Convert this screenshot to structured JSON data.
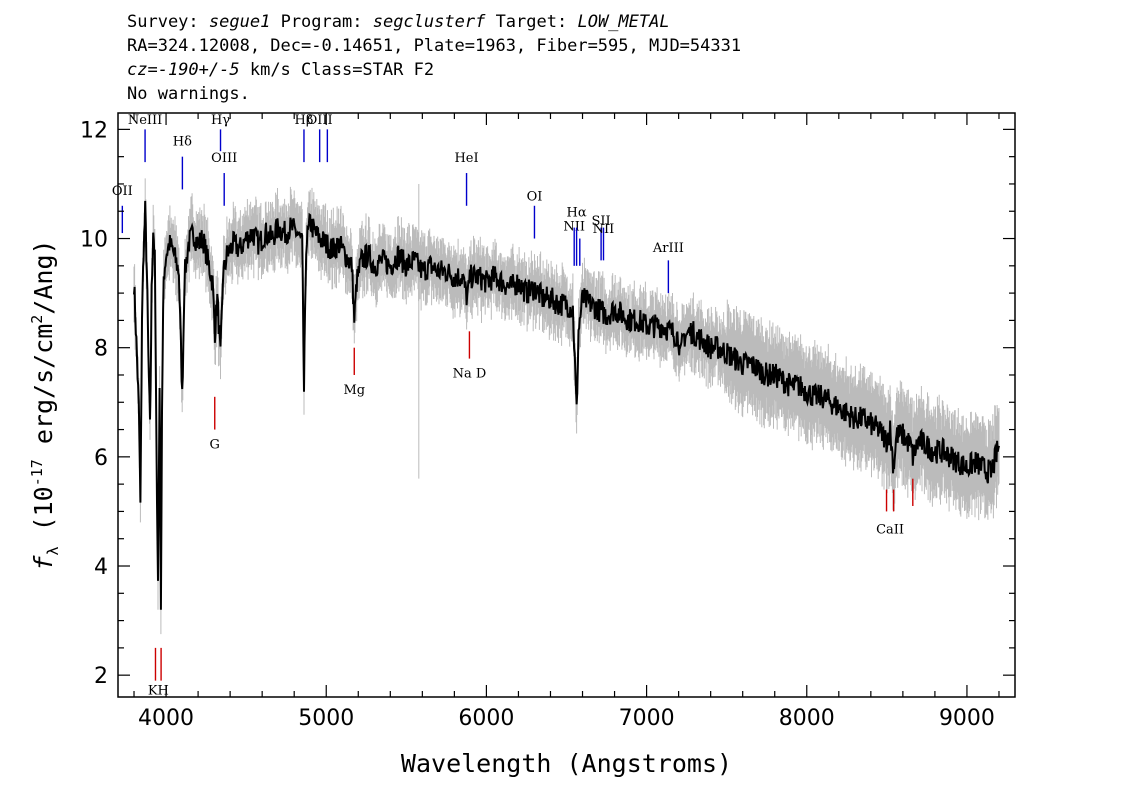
{
  "header": {
    "survey_label": "Survey:",
    "survey": "segue1",
    "program_label": "Program:",
    "program": "segclusterf",
    "target_label": "Target:",
    "target": "LOW_METAL",
    "line2": "RA=324.12008, Dec=-0.14651, Plate=1963, Fiber=595, MJD=54331",
    "cz_label": "cz=",
    "cz": "-190+/-5",
    "cz_rest": " km/s Class=STAR F2",
    "warnings": "No warnings."
  },
  "colors": {
    "spectrum": "#000000",
    "error_band": "#bbbbbb",
    "emission_line": "#0000cc",
    "absorption_line": "#cc0000"
  },
  "chart_data": {
    "type": "line",
    "xlabel": "Wavelength (Angstroms)",
    "ylabel_prefix": "f",
    "ylabel_sub": "λ",
    "ylabel_main": " (10",
    "ylabel_exp": "-17",
    "ylabel_rest": " erg/s/cm",
    "ylabel_exp2": "2",
    "ylabel_end": "/Ang)",
    "xlim": [
      3700,
      9300
    ],
    "ylim": [
      1.6,
      12.3
    ],
    "xticks": [
      4000,
      5000,
      6000,
      7000,
      8000,
      9000
    ],
    "yticks": [
      2,
      4,
      6,
      8,
      10,
      12
    ],
    "x_minor_step": 200,
    "y_minor_step": 0.5,
    "grid": false,
    "series": [
      {
        "points": [
          [
            3800,
            9.2
          ],
          [
            3815,
            8.1
          ],
          [
            3830,
            6.9
          ],
          [
            3840,
            5.1
          ],
          [
            3850,
            8.6
          ],
          [
            3860,
            9.8
          ],
          [
            3870,
            10.5
          ],
          [
            3880,
            9.4
          ],
          [
            3890,
            7.8
          ],
          [
            3900,
            6.5
          ],
          [
            3910,
            9.0
          ],
          [
            3920,
            10.2
          ],
          [
            3930,
            9.6
          ],
          [
            3940,
            6.2
          ],
          [
            3950,
            3.7
          ],
          [
            3960,
            7.4
          ],
          [
            3968,
            3.4
          ],
          [
            3975,
            6.9
          ],
          [
            3985,
            9.3
          ],
          [
            4000,
            9.7
          ],
          [
            4020,
            9.9
          ],
          [
            4040,
            9.8
          ],
          [
            4060,
            9.6
          ],
          [
            4080,
            9.4
          ],
          [
            4101,
            7.1
          ],
          [
            4115,
            9.3
          ],
          [
            4140,
            9.9
          ],
          [
            4170,
            10.1
          ],
          [
            4200,
            9.9
          ],
          [
            4230,
            10.0
          ],
          [
            4260,
            9.6
          ],
          [
            4290,
            9.2
          ],
          [
            4305,
            8.3
          ],
          [
            4320,
            8.9
          ],
          [
            4340,
            7.8
          ],
          [
            4355,
            9.3
          ],
          [
            4380,
            9.7
          ],
          [
            4420,
            9.9
          ],
          [
            4460,
            9.8
          ],
          [
            4500,
            10.0
          ],
          [
            4540,
            10.1
          ],
          [
            4580,
            9.9
          ],
          [
            4620,
            10.1
          ],
          [
            4660,
            10.0
          ],
          [
            4700,
            10.2
          ],
          [
            4740,
            10.1
          ],
          [
            4780,
            10.2
          ],
          [
            4820,
            10.1
          ],
          [
            4850,
            9.9
          ],
          [
            4861,
            7.2
          ],
          [
            4875,
            9.9
          ],
          [
            4900,
            10.3
          ],
          [
            4930,
            10.1
          ],
          [
            4960,
            10.0
          ],
          [
            5000,
            9.9
          ],
          [
            5040,
            9.8
          ],
          [
            5080,
            9.9
          ],
          [
            5120,
            9.7
          ],
          [
            5160,
            9.5
          ],
          [
            5175,
            8.5
          ],
          [
            5190,
            9.2
          ],
          [
            5220,
            9.6
          ],
          [
            5260,
            9.7
          ],
          [
            5300,
            9.5
          ],
          [
            5350,
            9.6
          ],
          [
            5400,
            9.5
          ],
          [
            5450,
            9.7
          ],
          [
            5500,
            9.5
          ],
          [
            5550,
            9.6
          ],
          [
            5600,
            9.4
          ],
          [
            5650,
            9.5
          ],
          [
            5700,
            9.4
          ],
          [
            5750,
            9.4
          ],
          [
            5800,
            9.3
          ],
          [
            5850,
            9.3
          ],
          [
            5880,
            8.9
          ],
          [
            5900,
            9.3
          ],
          [
            5950,
            9.3
          ],
          [
            6000,
            9.2
          ],
          [
            6050,
            9.3
          ],
          [
            6100,
            9.2
          ],
          [
            6150,
            9.1
          ],
          [
            6200,
            9.2
          ],
          [
            6250,
            9.0
          ],
          [
            6300,
            9.1
          ],
          [
            6350,
            8.9
          ],
          [
            6400,
            8.9
          ],
          [
            6450,
            8.8
          ],
          [
            6500,
            8.8
          ],
          [
            6540,
            8.7
          ],
          [
            6555,
            7.5
          ],
          [
            6563,
            6.8
          ],
          [
            6575,
            8.3
          ],
          [
            6600,
            8.9
          ],
          [
            6650,
            8.8
          ],
          [
            6700,
            8.7
          ],
          [
            6750,
            8.6
          ],
          [
            6800,
            8.7
          ],
          [
            6850,
            8.6
          ],
          [
            6900,
            8.5
          ],
          [
            6950,
            8.5
          ],
          [
            7000,
            8.4
          ],
          [
            7050,
            8.4
          ],
          [
            7100,
            8.4
          ],
          [
            7150,
            8.3
          ],
          [
            7200,
            8.2
          ],
          [
            7210,
            7.8
          ],
          [
            7230,
            8.2
          ],
          [
            7280,
            8.3
          ],
          [
            7320,
            8.2
          ],
          [
            7360,
            8.1
          ],
          [
            7400,
            8.0
          ],
          [
            7450,
            8.0
          ],
          [
            7500,
            7.9
          ],
          [
            7550,
            7.8
          ],
          [
            7600,
            7.7
          ],
          [
            7650,
            7.7
          ],
          [
            7700,
            7.6
          ],
          [
            7750,
            7.5
          ],
          [
            7800,
            7.5
          ],
          [
            7850,
            7.4
          ],
          [
            7900,
            7.3
          ],
          [
            7950,
            7.3
          ],
          [
            8000,
            7.2
          ],
          [
            8050,
            7.1
          ],
          [
            8100,
            7.1
          ],
          [
            8150,
            7.0
          ],
          [
            8200,
            6.9
          ],
          [
            8250,
            6.8
          ],
          [
            8300,
            6.7
          ],
          [
            8350,
            6.7
          ],
          [
            8400,
            6.6
          ],
          [
            8450,
            6.5
          ],
          [
            8498,
            6.3
          ],
          [
            8520,
            6.5
          ],
          [
            8542,
            5.8
          ],
          [
            8560,
            6.4
          ],
          [
            8600,
            6.4
          ],
          [
            8650,
            6.2
          ],
          [
            8662,
            6.0
          ],
          [
            8700,
            6.3
          ],
          [
            8750,
            6.2
          ],
          [
            8800,
            6.1
          ],
          [
            8850,
            6.1
          ],
          [
            8900,
            6.0
          ],
          [
            8950,
            5.9
          ],
          [
            9000,
            5.8
          ],
          [
            9050,
            5.9
          ],
          [
            9100,
            5.8
          ],
          [
            9150,
            5.7
          ],
          [
            9200,
            6.2
          ]
        ]
      }
    ],
    "lines": [
      {
        "label": "OII",
        "x": 3727,
        "y0": 10.1,
        "y1": 10.6,
        "kind": "emission",
        "label_y": 10.8
      },
      {
        "label": "NeIII",
        "x": 3869,
        "y0": 11.4,
        "y1": 12.0,
        "kind": "emission",
        "label_y": 12.1
      },
      {
        "label": "Hδ",
        "x": 4102,
        "y0": 10.9,
        "y1": 11.5,
        "kind": "emission",
        "label_y": 11.7
      },
      {
        "label": "Hγ",
        "x": 4340,
        "y0": 11.6,
        "y1": 12.0,
        "kind": "emission",
        "label_y": 12.1
      },
      {
        "label": "OIII",
        "x": 4363,
        "y0": 10.6,
        "y1": 11.2,
        "kind": "emission",
        "label_y": 11.4
      },
      {
        "label": "Hβ",
        "x": 4861,
        "y0": 11.4,
        "y1": 12.0,
        "kind": "emission",
        "label_y": 12.1
      },
      {
        "label": "OIII",
        "x": 4959,
        "y0": 11.4,
        "y1": 12.0,
        "kind": "emission",
        "label_y": 12.1
      },
      {
        "label": "",
        "x": 5007,
        "y0": 11.4,
        "y1": 12.0,
        "kind": "emission",
        "label_y": 12.1
      },
      {
        "label": "HeI",
        "x": 5876,
        "y0": 10.6,
        "y1": 11.2,
        "kind": "emission",
        "label_y": 11.4
      },
      {
        "label": "OI",
        "x": 6300,
        "y0": 10.0,
        "y1": 10.6,
        "kind": "emission",
        "label_y": 10.7
      },
      {
        "label": "NII",
        "x": 6548,
        "y0": 9.5,
        "y1": 10.2,
        "kind": "emission",
        "label_y": 10.15
      },
      {
        "label": "Hα",
        "x": 6563,
        "y0": 9.5,
        "y1": 10.2,
        "kind": "emission",
        "label_y": 10.4
      },
      {
        "label": "",
        "x": 6583,
        "y0": 9.5,
        "y1": 10.0,
        "kind": "emission",
        "label_y": 10.0
      },
      {
        "label": "SII",
        "x": 6716,
        "y0": 9.6,
        "y1": 10.2,
        "kind": "emission",
        "label_y": 10.25
      },
      {
        "label": "NII",
        "x": 6731,
        "y0": 9.6,
        "y1": 10.2,
        "kind": "emission",
        "label_y": 10.1
      },
      {
        "label": "ArIII",
        "x": 7136,
        "y0": 9.0,
        "y1": 9.6,
        "kind": "emission",
        "label_y": 9.75
      },
      {
        "label": "KH",
        "x": 3934,
        "y0": 1.9,
        "y1": 2.5,
        "kind": "absorption",
        "label_y": 1.65
      },
      {
        "label": "",
        "x": 3969,
        "y0": 1.9,
        "y1": 2.5,
        "kind": "absorption",
        "label_y": 1.65
      },
      {
        "label": "G",
        "x": 4304,
        "y0": 6.5,
        "y1": 7.1,
        "kind": "absorption",
        "label_y": 6.15
      },
      {
        "label": "Mg",
        "x": 5175,
        "y0": 7.5,
        "y1": 8.0,
        "kind": "absorption",
        "label_y": 7.15
      },
      {
        "label": "Na D",
        "x": 5894,
        "y0": 7.8,
        "y1": 8.3,
        "kind": "absorption",
        "label_y": 7.45
      },
      {
        "label": "CaII",
        "x": 8498,
        "y0": 5.0,
        "y1": 5.4,
        "kind": "absorption",
        "label_y": 4.6
      },
      {
        "label": "",
        "x": 8542,
        "y0": 5.0,
        "y1": 5.4,
        "kind": "absorption",
        "label_y": 4.6
      },
      {
        "label": "",
        "x": 8662,
        "y0": 5.1,
        "y1": 5.6,
        "kind": "absorption",
        "label_y": 4.6
      }
    ]
  }
}
